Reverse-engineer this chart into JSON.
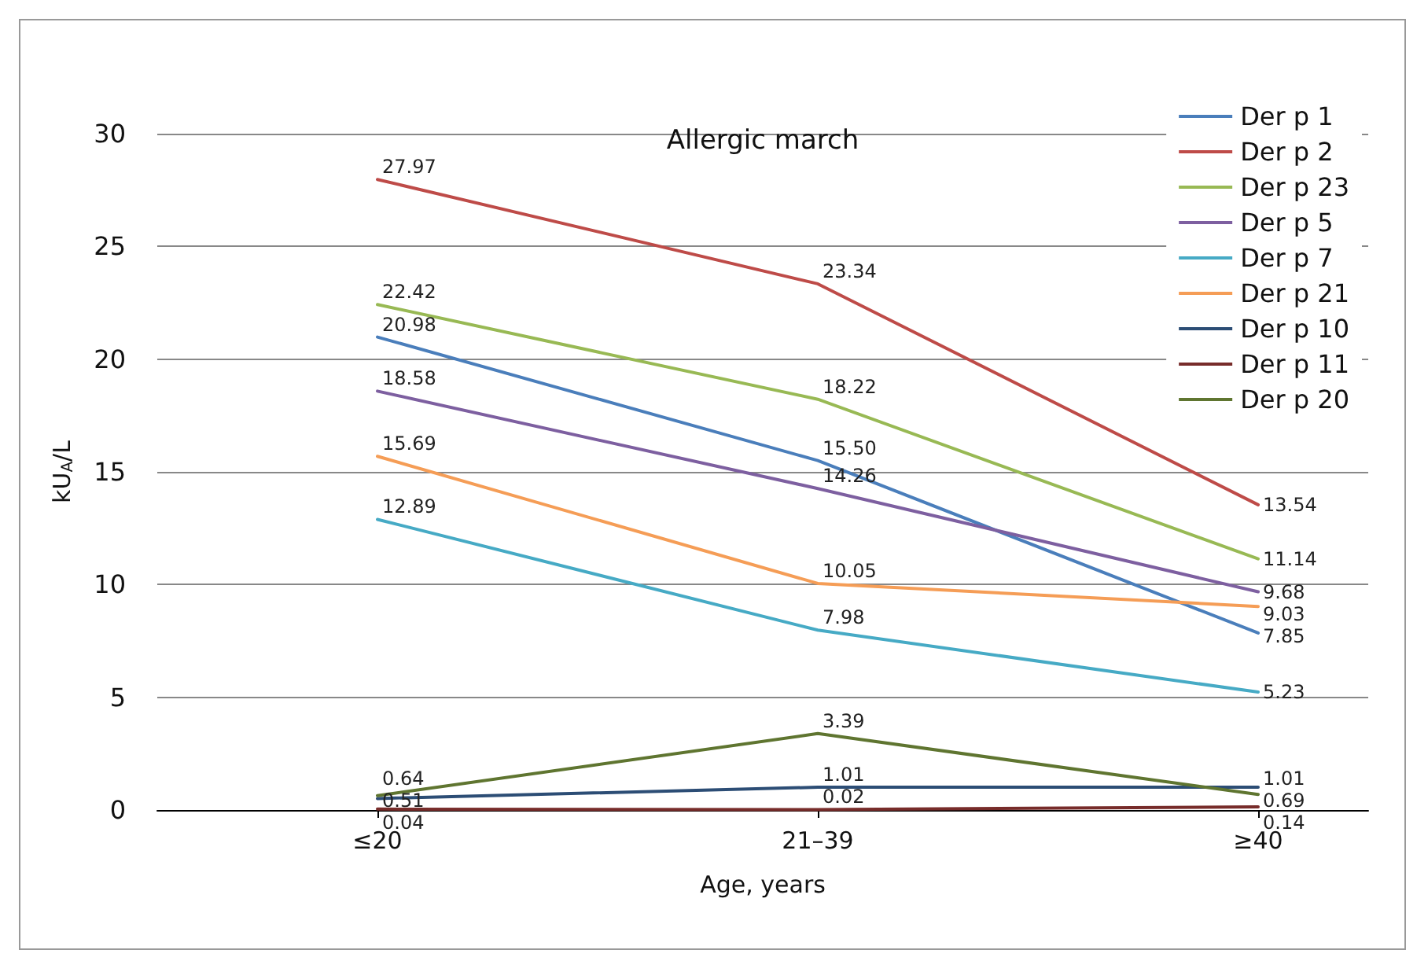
{
  "chart_data": {
    "type": "line",
    "title": "Allergic march",
    "xlabel": "Age, years",
    "ylabel": "kU$_{A}$/L",
    "categories": [
      "≤20",
      "21–39",
      "≥40"
    ],
    "series": [
      {
        "name": "Der p 1",
        "color": "#4a7ebb",
        "values": [
          20.98,
          15.5,
          7.85
        ],
        "value_labels": [
          "20.98",
          "15.50",
          "7.85"
        ]
      },
      {
        "name": "Der p 2",
        "color": "#be4b48",
        "values": [
          27.97,
          23.34,
          13.54
        ],
        "value_labels": [
          "27.97",
          "23.34",
          "13.54"
        ]
      },
      {
        "name": "Der p 23",
        "color": "#98b954",
        "values": [
          22.42,
          18.22,
          11.14
        ],
        "value_labels": [
          "22.42",
          "18.22",
          "11.14"
        ]
      },
      {
        "name": "Der p 5",
        "color": "#7d5fa0",
        "values": [
          18.58,
          14.26,
          9.68
        ],
        "value_labels": [
          "18.58",
          "14.26",
          "9.68"
        ]
      },
      {
        "name": "Der p 7",
        "color": "#46aac5",
        "values": [
          12.89,
          7.98,
          5.23
        ],
        "value_labels": [
          "12.89",
          "7.98",
          "5.23"
        ]
      },
      {
        "name": "Der p 21",
        "color": "#f59d56",
        "values": [
          15.69,
          10.05,
          9.03
        ],
        "value_labels": [
          "15.69",
          "10.05",
          "9.03"
        ]
      },
      {
        "name": "Der p 10",
        "color": "#2c4d75",
        "values": [
          0.51,
          1.01,
          1.01
        ],
        "value_labels": [
          "0.51",
          "1.01",
          "1.01"
        ]
      },
      {
        "name": "Der p 11",
        "color": "#772c2a",
        "values": [
          0.04,
          0.02,
          0.14
        ],
        "value_labels": [
          "0.04",
          "0.02",
          "0.14"
        ]
      },
      {
        "name": "Der p 20",
        "color": "#5f7530",
        "values": [
          0.64,
          3.39,
          0.69
        ],
        "value_labels": [
          "0.64",
          "3.39",
          "0.69"
        ]
      }
    ],
    "ylim": [
      0,
      30
    ],
    "yticks": [
      0,
      5,
      10,
      15,
      20,
      25,
      30
    ],
    "grid": "y",
    "legend": "top right",
    "marker": "none",
    "line_style": "solid"
  }
}
